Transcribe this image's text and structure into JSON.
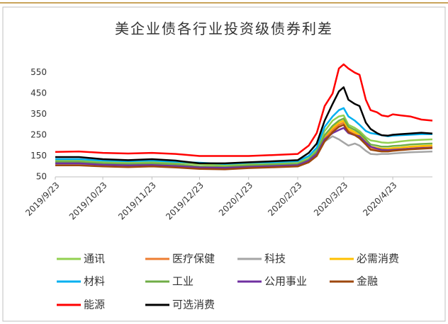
{
  "chart_data": {
    "type": "line",
    "title": "美企业债各行业投资级债券利差",
    "x": [
      "2019/9/23",
      "2019/10/8",
      "2019/10/23",
      "2019/11/8",
      "2019/11/23",
      "2019/12/8",
      "2019/12/23",
      "2020/1/8",
      "2020/1/23",
      "2020/2/8",
      "2020/2/23",
      "2020/3/1",
      "2020/3/6",
      "2020/3/11",
      "2020/3/16",
      "2020/3/20",
      "2020/3/23",
      "2020/3/26",
      "2020/3/30",
      "2020/4/2",
      "2020/4/6",
      "2020/4/9",
      "2020/4/13",
      "2020/4/16",
      "2020/4/20",
      "2020/4/23",
      "2020/4/28",
      "2020/5/4",
      "2020/5/11",
      "2020/5/18"
    ],
    "xlim": [
      "2019/9/23",
      "2020/5/18"
    ],
    "xticks": [
      "2019/9/23",
      "2019/10/23",
      "2019/11/23",
      "2019/12/23",
      "2020/1/23",
      "2020/2/23",
      "2020/3/23",
      "2020/4/23"
    ],
    "ylim": [
      50,
      600
    ],
    "yticks": [
      50,
      150,
      250,
      350,
      450,
      550
    ],
    "grid": false,
    "legend": "bottom",
    "series": [
      {
        "name": "通讯",
        "color": "#92d050",
        "values": [
          130,
          130,
          122,
          120,
          122,
          118,
          110,
          105,
          110,
          115,
          120,
          145,
          180,
          270,
          320,
          340,
          345,
          300,
          285,
          270,
          240,
          225,
          220,
          215,
          213,
          215,
          220,
          225,
          228,
          230
        ]
      },
      {
        "name": "医疗保健",
        "color": "#ed7d31",
        "values": [
          112,
          112,
          106,
          103,
          106,
          100,
          92,
          90,
          96,
          100,
          104,
          125,
          158,
          235,
          275,
          300,
          310,
          270,
          255,
          240,
          210,
          185,
          180,
          178,
          178,
          180,
          182,
          186,
          190,
          192
        ]
      },
      {
        "name": "科技",
        "color": "#a5a5a5",
        "values": [
          110,
          110,
          104,
          100,
          103,
          98,
          90,
          88,
          94,
          98,
          102,
          122,
          155,
          220,
          245,
          230,
          215,
          200,
          210,
          200,
          175,
          160,
          158,
          160,
          160,
          162,
          165,
          168,
          170,
          172
        ]
      },
      {
        "name": "必需消费",
        "color": "#ffc000",
        "values": [
          118,
          118,
          112,
          108,
          110,
          105,
          96,
          95,
          100,
          104,
          108,
          130,
          165,
          245,
          285,
          310,
          320,
          280,
          265,
          250,
          220,
          195,
          190,
          185,
          185,
          188,
          190,
          195,
          198,
          200
        ]
      },
      {
        "name": "材料",
        "color": "#00b0f0",
        "values": [
          135,
          135,
          128,
          125,
          128,
          122,
          118,
          112,
          118,
          120,
          125,
          150,
          190,
          290,
          340,
          370,
          380,
          340,
          320,
          300,
          270,
          260,
          255,
          250,
          245,
          248,
          250,
          252,
          255,
          255
        ]
      },
      {
        "name": "工业",
        "color": "#70ad47",
        "values": [
          122,
          122,
          115,
          112,
          115,
          110,
          100,
          98,
          105,
          108,
          112,
          135,
          170,
          250,
          295,
          320,
          330,
          290,
          275,
          260,
          230,
          205,
          200,
          195,
          195,
          198,
          200,
          205,
          208,
          210
        ]
      },
      {
        "name": "公用事业",
        "color": "#7030a0",
        "values": [
          115,
          115,
          108,
          105,
          107,
          102,
          95,
          93,
          98,
          102,
          106,
          128,
          160,
          230,
          260,
          275,
          285,
          260,
          250,
          245,
          215,
          195,
          185,
          180,
          178,
          180,
          182,
          185,
          188,
          190
        ]
      },
      {
        "name": "金融",
        "color": "#9e480e",
        "values": [
          105,
          105,
          100,
          97,
          100,
          95,
          88,
          86,
          92,
          96,
          100,
          120,
          150,
          220,
          265,
          290,
          300,
          265,
          250,
          235,
          205,
          180,
          175,
          172,
          172,
          175,
          178,
          182,
          185,
          188
        ]
      },
      {
        "name": "能源",
        "color": "#ff0000",
        "values": [
          170,
          172,
          165,
          162,
          165,
          160,
          150,
          150,
          150,
          155,
          160,
          200,
          260,
          390,
          450,
          570,
          590,
          570,
          550,
          540,
          420,
          370,
          360,
          345,
          340,
          350,
          345,
          340,
          325,
          320
        ]
      },
      {
        "name": "可选消费",
        "color": "#000000",
        "values": [
          145,
          145,
          135,
          130,
          135,
          128,
          115,
          115,
          120,
          125,
          130,
          165,
          210,
          320,
          400,
          460,
          480,
          420,
          400,
          390,
          310,
          280,
          260,
          250,
          248,
          252,
          255,
          258,
          262,
          258
        ]
      }
    ]
  }
}
